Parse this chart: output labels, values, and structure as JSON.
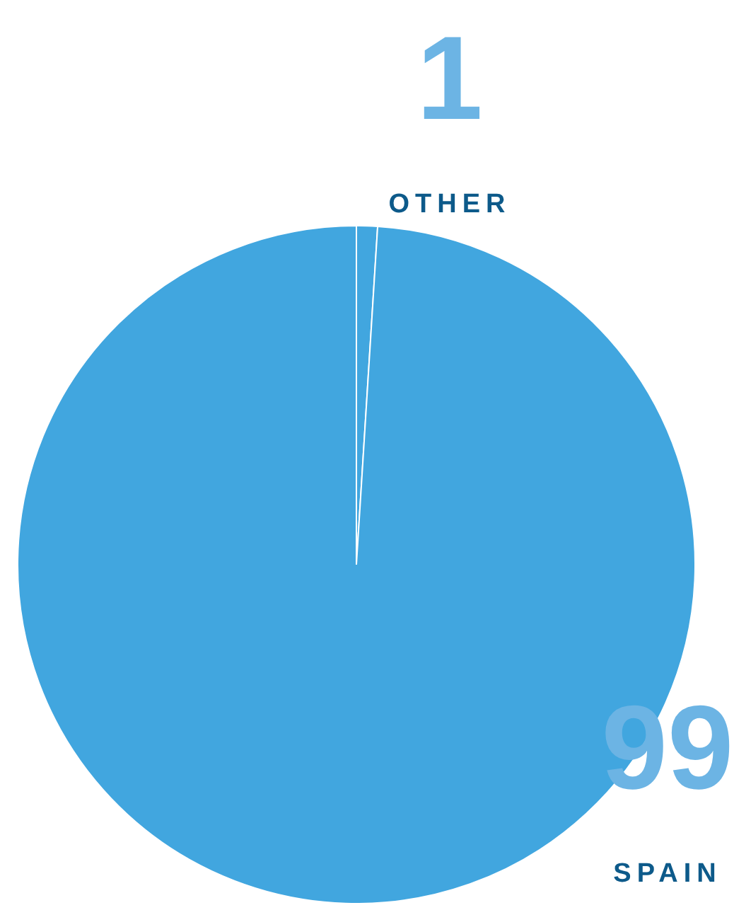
{
  "chart_data": {
    "type": "pie",
    "categories": [
      "OTHER",
      "SPAIN"
    ],
    "values": [
      1,
      99
    ],
    "value_labels": [
      "1",
      "99"
    ],
    "colors": [
      "#41a6df",
      "#41a6df"
    ],
    "legend": false
  }
}
